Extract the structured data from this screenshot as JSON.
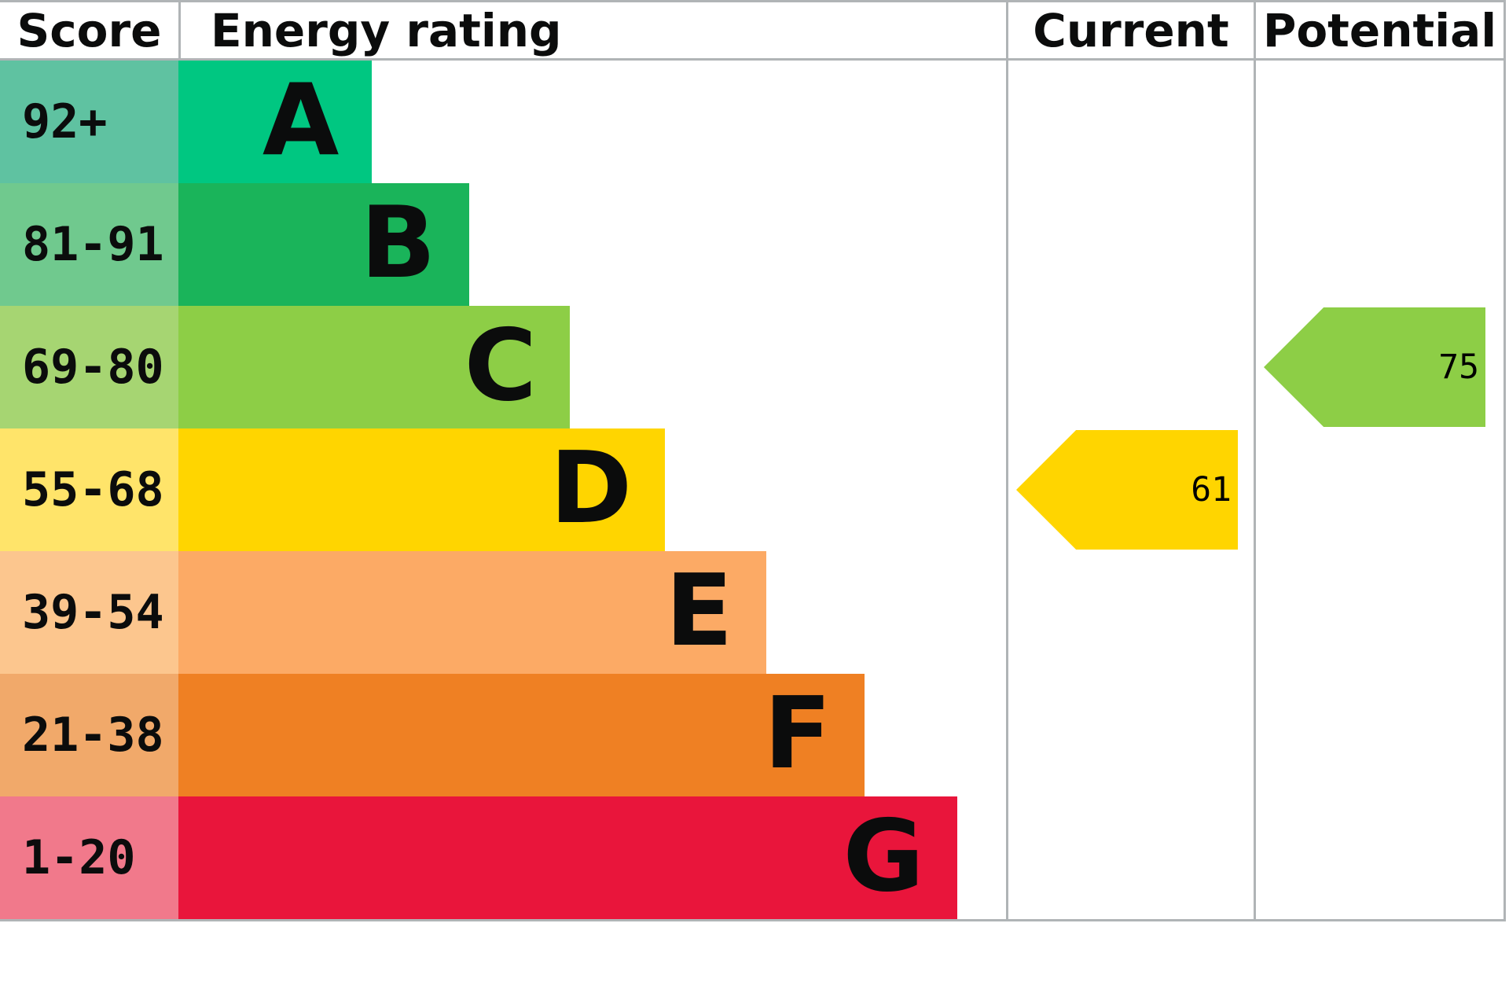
{
  "chart": {
    "border_color": "#b0b4b6",
    "headers": {
      "score": "Score",
      "rating": "Energy rating",
      "current": "Current",
      "potential": "Potential"
    },
    "bands": [
      {
        "score": "92+",
        "letter": "A",
        "bar_color": "#00c781",
        "score_color": "#5fc2a1",
        "bar_width_pct": 23.4
      },
      {
        "score": "81-91",
        "letter": "B",
        "bar_color": "#1ab45a",
        "score_color": "#70c98e",
        "bar_width_pct": 35.1
      },
      {
        "score": "69-80",
        "letter": "C",
        "bar_color": "#8dce46",
        "score_color": "#a6d572",
        "bar_width_pct": 47.3
      },
      {
        "score": "55-68",
        "letter": "D",
        "bar_color": "#ffd500",
        "score_color": "#ffe46a",
        "bar_width_pct": 58.8
      },
      {
        "score": "39-54",
        "letter": "E",
        "bar_color": "#fcaa65",
        "score_color": "#fcc68e",
        "bar_width_pct": 71.0
      },
      {
        "score": "21-38",
        "letter": "F",
        "bar_color": "#ef8023",
        "score_color": "#f1a96a",
        "bar_width_pct": 82.9
      },
      {
        "score": "1-20",
        "letter": "G",
        "bar_color": "#e9153b",
        "score_color": "#f1798b",
        "bar_width_pct": 94.1
      }
    ],
    "markers": {
      "current": {
        "value": "61",
        "band": "D",
        "band_index": 3,
        "color": "#ffd500"
      },
      "potential": {
        "value": "75",
        "band": "C",
        "band_index": 2,
        "color": "#8dce46"
      }
    }
  },
  "chart_data": {
    "type": "bar",
    "title": "Energy rating",
    "columns": [
      "Score",
      "Energy rating",
      "Current",
      "Potential"
    ],
    "categories": [
      "A",
      "B",
      "C",
      "D",
      "E",
      "F",
      "G"
    ],
    "score_ranges": [
      "92+",
      "81-91",
      "69-80",
      "55-68",
      "39-54",
      "21-38",
      "1-20"
    ],
    "bar_lengths_pct_of_column": [
      23.4,
      35.1,
      47.3,
      58.8,
      71.0,
      82.9,
      94.1
    ],
    "band_colors": [
      "#00c781",
      "#1ab45a",
      "#8dce46",
      "#ffd500",
      "#fcaa65",
      "#ef8023",
      "#e9153b"
    ],
    "current_rating": 61,
    "current_band": "D",
    "potential_rating": 75,
    "potential_band": "C",
    "legend_position": "none",
    "grid": false
  }
}
